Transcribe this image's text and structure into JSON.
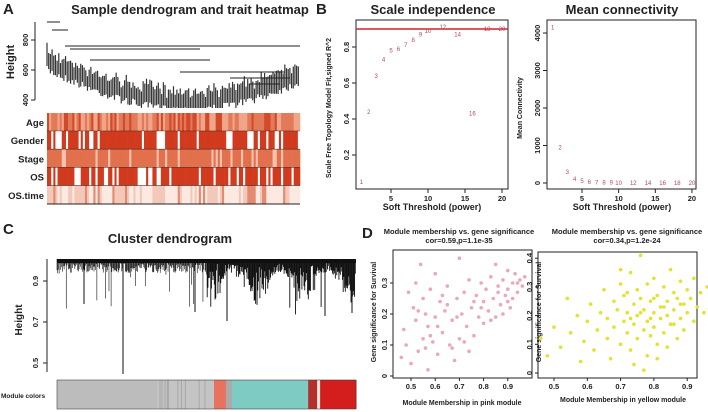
{
  "chart_data": [
    {
      "panel": "A",
      "type": "heatmap",
      "title": "Sample dendrogram and trait heatmap",
      "ylabel": "Height",
      "yticks": [
        400,
        600,
        800
      ],
      "ylim": [
        380,
        900
      ],
      "traits": [
        "Age",
        "Gender",
        "Stage",
        "OS",
        "OS.time"
      ],
      "color_low": "#ffffff",
      "color_high": "#d23a1e"
    },
    {
      "panel": "B",
      "type": "scatter",
      "title": "Scale independence",
      "xlabel": "Soft Threshold (power)",
      "ylabel": "Scale Free Topology Model Fit,signed R^2",
      "xticks": [
        5,
        10,
        15,
        20
      ],
      "yticks": [
        0.2,
        0.4,
        0.6,
        0.8
      ],
      "xlim": [
        0.3,
        20.8
      ],
      "ylim": [
        0.01,
        0.95
      ],
      "threshold_line": 0.9,
      "line_color": "#d6202a",
      "powers": [
        1,
        2,
        3,
        4,
        5,
        6,
        7,
        8,
        9,
        10,
        12,
        14,
        16,
        18,
        20
      ],
      "values": [
        0.05,
        0.44,
        0.64,
        0.73,
        0.78,
        0.79,
        0.81,
        0.84,
        0.87,
        0.89,
        0.91,
        0.87,
        0.43,
        0.9,
        0.9
      ]
    },
    {
      "panel": "B",
      "type": "scatter",
      "title": "Mean connectivity",
      "xlabel": "Soft Threshold (power)",
      "ylabel": "Mean Connectivity",
      "xticks": [
        5,
        10,
        15,
        20
      ],
      "yticks": [
        0,
        1000,
        2000,
        3000,
        4000
      ],
      "xlim": [
        0.3,
        20.8
      ],
      "ylim": [
        -150,
        4350
      ],
      "powers": [
        1,
        2,
        3,
        4,
        5,
        6,
        7,
        8,
        9,
        10,
        12,
        14,
        16,
        18,
        20
      ],
      "values": [
        4150,
        950,
        300,
        110,
        50,
        30,
        20,
        10,
        8,
        6,
        5,
        4,
        4,
        3,
        3
      ]
    },
    {
      "panel": "C",
      "type": "heatmap",
      "title": "Cluster dendrogram",
      "ylabel": "Height",
      "yticks": [
        0.5,
        0.7,
        0.9
      ],
      "ylim": [
        0.44,
        1.0
      ],
      "color_bar_label": "Module colors",
      "modules": [
        {
          "color": "#bcbcbc",
          "share": 0.335
        },
        {
          "color": "#c4c4c4",
          "share": 0.19
        },
        {
          "color": "#e6725f",
          "share": 0.04
        },
        {
          "color": "#a9aaa9",
          "share": 0.02
        },
        {
          "color": "#7ecbc3",
          "share": 0.255
        },
        {
          "color": "#b3312c",
          "share": 0.03
        },
        {
          "color": "#fbe9e2",
          "share": 0.01
        },
        {
          "color": "#d41d1d",
          "share": 0.12
        }
      ]
    },
    {
      "panel": "D",
      "type": "scatter",
      "title": "Module membership vs. gene significance",
      "subtitle": "cor=0.59,p=1.1e-35",
      "xlabel": "Module Membership in pink module",
      "ylabel": "Gene significance for Survival",
      "xticks": [
        0.5,
        0.6,
        0.7,
        0.8,
        0.9
      ],
      "yticks": [
        0,
        0.1,
        0.2,
        0.3
      ],
      "color": "#eaa9ba",
      "points": [
        [
          0.46,
          0.06
        ],
        [
          0.47,
          0.15
        ],
        [
          0.48,
          0.1
        ],
        [
          0.49,
          0.27
        ],
        [
          0.5,
          0.04
        ],
        [
          0.51,
          0.22
        ],
        [
          0.52,
          0.18
        ],
        [
          0.52,
          0.3
        ],
        [
          0.53,
          0.08
        ],
        [
          0.54,
          0.36
        ],
        [
          0.55,
          0.12
        ],
        [
          0.55,
          0.25
        ],
        [
          0.56,
          0.2
        ],
        [
          0.57,
          0.02
        ],
        [
          0.57,
          0.16
        ],
        [
          0.58,
          0.28
        ],
        [
          0.59,
          0.11
        ],
        [
          0.6,
          0.19
        ],
        [
          0.6,
          0.33
        ],
        [
          0.61,
          0.07
        ],
        [
          0.62,
          0.24
        ],
        [
          0.63,
          0.14
        ],
        [
          0.64,
          0.21
        ],
        [
          0.65,
          0.29
        ],
        [
          0.66,
          0.1
        ],
        [
          0.67,
          0.18
        ],
        [
          0.68,
          0.05
        ],
        [
          0.69,
          0.25
        ],
        [
          0.7,
          0.38
        ],
        [
          0.7,
          0.12
        ],
        [
          0.71,
          0.2
        ],
        [
          0.72,
          0.27
        ],
        [
          0.73,
          0.16
        ],
        [
          0.74,
          0.31
        ],
        [
          0.75,
          0.22
        ],
        [
          0.76,
          0.13
        ],
        [
          0.77,
          0.26
        ],
        [
          0.78,
          0.19
        ],
        [
          0.79,
          0.3
        ],
        [
          0.8,
          0.24
        ],
        [
          0.8,
          0.17
        ],
        [
          0.81,
          0.28
        ],
        [
          0.82,
          0.21
        ],
        [
          0.83,
          0.32
        ],
        [
          0.84,
          0.25
        ],
        [
          0.85,
          0.36
        ],
        [
          0.85,
          0.19
        ],
        [
          0.86,
          0.29
        ],
        [
          0.87,
          0.23
        ],
        [
          0.88,
          0.31
        ],
        [
          0.89,
          0.26
        ],
        [
          0.9,
          0.34
        ],
        [
          0.9,
          0.28
        ],
        [
          0.91,
          0.22
        ],
        [
          0.92,
          0.3
        ],
        [
          0.93,
          0.33
        ],
        [
          0.94,
          0.27
        ],
        [
          0.95,
          0.31
        ],
        [
          0.96,
          0.29
        ],
        [
          0.97,
          0.32
        ],
        [
          0.58,
          0.13
        ],
        [
          0.63,
          0.26
        ],
        [
          0.67,
          0.09
        ],
        [
          0.74,
          0.08
        ],
        [
          0.83,
          0.18
        ],
        [
          0.88,
          0.2
        ],
        [
          0.92,
          0.25
        ],
        [
          0.53,
          0.21
        ],
        [
          0.61,
          0.16
        ],
        [
          0.69,
          0.19
        ],
        [
          0.76,
          0.24
        ],
        [
          0.86,
          0.27
        ],
        [
          0.94,
          0.3
        ],
        [
          0.9,
          0.24
        ],
        [
          0.79,
          0.22
        ],
        [
          0.56,
          0.09
        ],
        [
          0.65,
          0.23
        ],
        [
          0.72,
          0.11
        ]
      ]
    },
    {
      "panel": "D",
      "type": "scatter",
      "title": "Module membership vs. gene significance",
      "subtitle": "cor=0.34,p=1.2e-24",
      "xlabel": "Module Membership in yellow module",
      "ylabel": "Gene significance for Survival",
      "xticks": [
        0.5,
        0.6,
        0.7,
        0.8,
        0.9
      ],
      "yticks": [
        0,
        0.1,
        0.2,
        0.3,
        0.4
      ],
      "color": "#e3e32e",
      "points": [
        [
          0.46,
          0.12
        ],
        [
          0.48,
          0.06
        ],
        [
          0.5,
          0.16
        ],
        [
          0.52,
          0.09
        ],
        [
          0.54,
          0.26
        ],
        [
          0.55,
          0.14
        ],
        [
          0.57,
          0.2
        ],
        [
          0.58,
          0.04
        ],
        [
          0.59,
          0.11
        ],
        [
          0.6,
          0.18
        ],
        [
          0.61,
          0.24
        ],
        [
          0.62,
          0.08
        ],
        [
          0.63,
          0.15
        ],
        [
          0.64,
          0.21
        ],
        [
          0.65,
          0.29
        ],
        [
          0.66,
          0.12
        ],
        [
          0.66,
          0.19
        ],
        [
          0.67,
          0.05
        ],
        [
          0.68,
          0.25
        ],
        [
          0.68,
          0.16
        ],
        [
          0.69,
          0.22
        ],
        [
          0.7,
          0.31
        ],
        [
          0.7,
          0.1
        ],
        [
          0.71,
          0.18
        ],
        [
          0.71,
          0.27
        ],
        [
          0.72,
          0.14
        ],
        [
          0.72,
          0.21
        ],
        [
          0.73,
          0.35
        ],
        [
          0.73,
          0.08
        ],
        [
          0.74,
          0.24
        ],
        [
          0.74,
          0.17
        ],
        [
          0.75,
          0.29
        ],
        [
          0.75,
          0.12
        ],
        [
          0.75,
          0.2
        ],
        [
          0.76,
          0.41
        ],
        [
          0.76,
          0.26
        ],
        [
          0.77,
          0.15
        ],
        [
          0.77,
          0.22
        ],
        [
          0.78,
          0.31
        ],
        [
          0.78,
          0.18
        ],
        [
          0.78,
          0.06
        ],
        [
          0.79,
          0.25
        ],
        [
          0.79,
          0.13
        ],
        [
          0.8,
          0.21
        ],
        [
          0.8,
          0.33
        ],
        [
          0.8,
          0.16
        ],
        [
          0.81,
          0.27
        ],
        [
          0.81,
          0.1
        ],
        [
          0.82,
          0.23
        ],
        [
          0.82,
          0.19
        ],
        [
          0.83,
          0.3
        ],
        [
          0.83,
          0.14
        ],
        [
          0.84,
          0.25
        ],
        [
          0.84,
          0.2
        ],
        [
          0.85,
          0.36
        ],
        [
          0.85,
          0.17
        ],
        [
          0.86,
          0.28
        ],
        [
          0.86,
          0.22
        ],
        [
          0.87,
          0.12
        ],
        [
          0.87,
          0.26
        ],
        [
          0.88,
          0.32
        ],
        [
          0.88,
          0.19
        ],
        [
          0.89,
          0.24
        ],
        [
          0.89,
          0.15
        ],
        [
          0.9,
          0.29
        ],
        [
          0.9,
          0.21
        ],
        [
          0.91,
          0.26
        ],
        [
          0.92,
          0.33
        ],
        [
          0.92,
          0.18
        ],
        [
          0.93,
          0.23
        ],
        [
          0.94,
          0.28
        ],
        [
          0.95,
          0.21
        ],
        [
          0.96,
          0.3
        ],
        [
          0.97,
          0.24
        ],
        [
          0.98,
          0.27
        ],
        [
          0.74,
          0.03
        ],
        [
          0.77,
          0.01
        ],
        [
          0.81,
          0.05
        ],
        [
          0.7,
          0.36
        ],
        [
          0.84,
          0.09
        ],
        [
          0.72,
          0.28
        ],
        [
          0.79,
          0.19
        ],
        [
          0.83,
          0.23
        ],
        [
          0.76,
          0.21
        ],
        [
          0.86,
          0.17
        ],
        [
          0.73,
          0.19
        ],
        [
          0.8,
          0.26
        ],
        [
          0.88,
          0.24
        ]
      ]
    }
  ]
}
